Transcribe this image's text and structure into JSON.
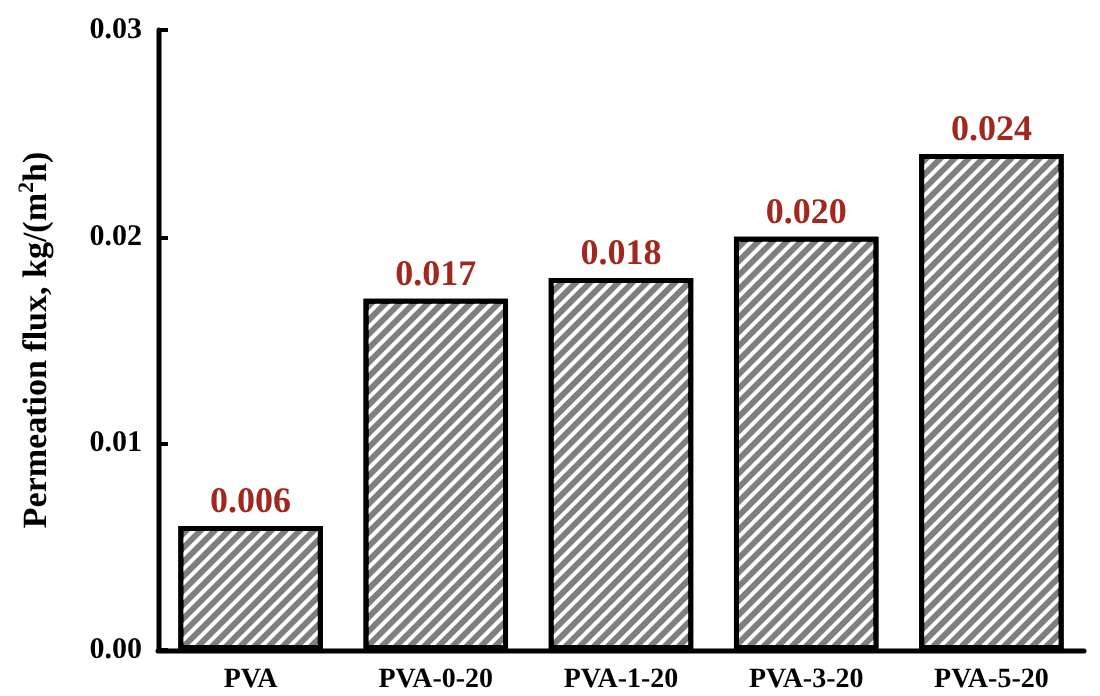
{
  "chart_data": {
    "type": "bar",
    "ylabel": "Permeation flux, kg/(m$^{2}$h)",
    "categories": [
      "PVA",
      "PVA-0-20",
      "PVA-1-20",
      "PVA-3-20",
      "PVA-5-20"
    ],
    "values": [
      0.006,
      0.017,
      0.018,
      0.02,
      0.024
    ],
    "value_labels": [
      "0.006",
      "0.017",
      "0.018",
      "0.020",
      "0.024"
    ],
    "color": "#7f7f7f",
    "ylim": [
      0,
      0.03
    ],
    "yticks": [
      {
        "value": 0,
        "label": "0.00"
      },
      {
        "value": 0.01,
        "label": "0.01"
      },
      {
        "value": 0.02,
        "label": "0.02"
      },
      {
        "value": 0.03,
        "label": "0.03"
      }
    ],
    "grid": false
  }
}
